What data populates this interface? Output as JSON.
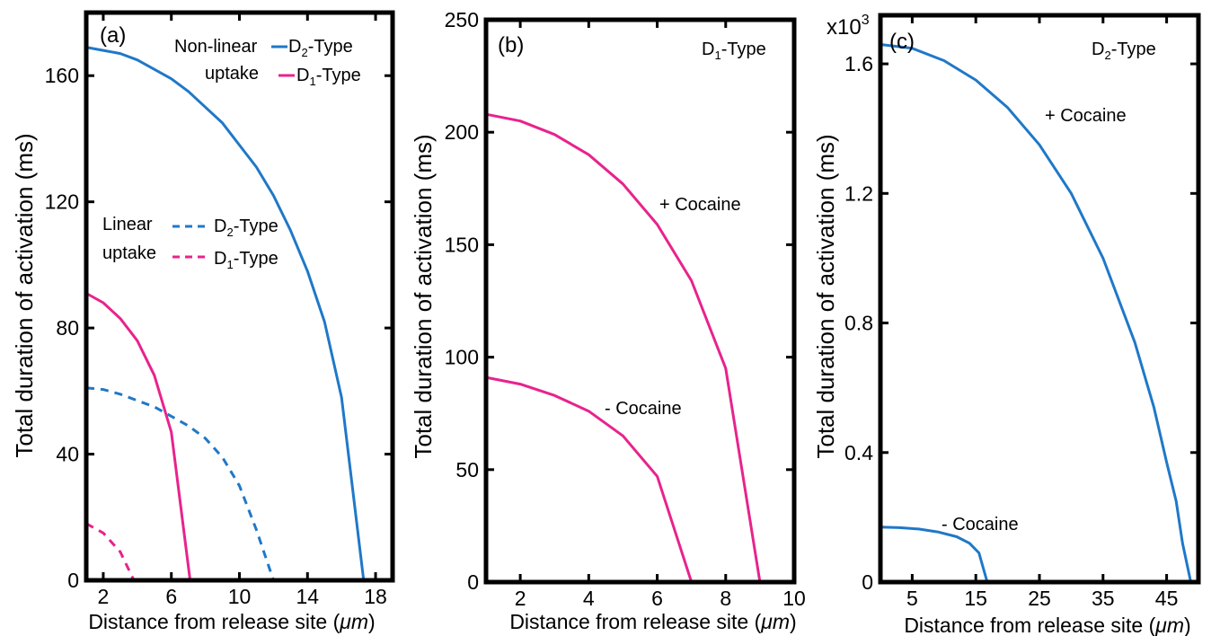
{
  "chart_data": [
    {
      "type": "line",
      "panel_label": "(a)",
      "xlabel": "Distance from release site (",
      "xlabel_unit": "μm",
      "ylabel": "Total duration of activation (ms)",
      "xlim": [
        1,
        19
      ],
      "ylim": [
        0,
        180
      ],
      "xticks": [
        2,
        6,
        10,
        14,
        18
      ],
      "yticks": [
        0,
        40,
        80,
        120,
        160
      ],
      "legend_groups": [
        {
          "label_lines": [
            "Non-linear",
            "uptake"
          ],
          "entries": [
            "D2-Type",
            "D1-Type"
          ]
        },
        {
          "label_lines": [
            "Linear",
            "uptake"
          ],
          "entries": [
            "D2-Type",
            "D1-Type"
          ]
        }
      ],
      "series": [
        {
          "name": "Non-linear uptake D2-Type",
          "style": "solid",
          "color": "#1f78c8",
          "x": [
            1,
            2,
            3,
            4,
            5,
            6,
            7,
            8,
            9,
            10,
            11,
            12,
            13,
            14,
            15,
            16,
            17.3
          ],
          "y": [
            169,
            168,
            167,
            165,
            162,
            159,
            155,
            150,
            145,
            138,
            131,
            122,
            111,
            98,
            82,
            58,
            0
          ]
        },
        {
          "name": "Non-linear uptake D1-Type",
          "style": "solid",
          "color": "#e8238c",
          "x": [
            1,
            2,
            3,
            4,
            5,
            6,
            7.1
          ],
          "y": [
            91,
            88,
            83,
            76,
            65,
            47,
            0
          ]
        },
        {
          "name": "Linear uptake D2-Type",
          "style": "dashed",
          "color": "#1f78c8",
          "x": [
            1,
            2,
            3,
            4,
            5,
            6,
            7,
            8,
            9,
            10,
            11,
            12
          ],
          "y": [
            61,
            60.5,
            59,
            57,
            55,
            52,
            49,
            45,
            39,
            30,
            16,
            0
          ]
        },
        {
          "name": "Linear uptake D1-Type",
          "style": "dashed",
          "color": "#e8238c",
          "x": [
            1,
            2,
            3,
            3.8
          ],
          "y": [
            18,
            15,
            9,
            0
          ]
        }
      ]
    },
    {
      "type": "line",
      "panel_label": "(b)",
      "title": "D1-Type",
      "xlabel": "Distance from release site (",
      "xlabel_unit": "μm",
      "ylabel": "Total duration of activation (ms)",
      "xlim": [
        1,
        10
      ],
      "ylim": [
        0,
        250
      ],
      "xticks": [
        2,
        4,
        6,
        8,
        10
      ],
      "yticks": [
        0,
        50,
        100,
        150,
        200,
        250
      ],
      "series": [
        {
          "name": "+ Cocaine",
          "style": "solid",
          "color": "#e8238c",
          "x": [
            1,
            2,
            3,
            4,
            5,
            6,
            7,
            8,
            9
          ],
          "y": [
            208,
            205,
            199,
            190,
            177,
            159,
            134,
            95,
            0
          ]
        },
        {
          "name": "- Cocaine",
          "style": "solid",
          "color": "#e8238c",
          "x": [
            1,
            2,
            3,
            4,
            5,
            6,
            7
          ],
          "y": [
            91,
            88,
            83,
            76,
            65,
            47,
            0
          ]
        }
      ]
    },
    {
      "type": "line",
      "panel_label": "(c)",
      "title": "D2-Type",
      "scale_note": "x10",
      "scale_exp": "3",
      "xlabel": "Distance from release site (",
      "xlabel_unit": "μm",
      "ylabel": "Total duration of activation (ms)",
      "xlim": [
        0,
        50
      ],
      "ylim": [
        0,
        1.75
      ],
      "xticks": [
        5,
        15,
        25,
        35,
        45
      ],
      "yticks": [
        0,
        0.4,
        0.8,
        1.2,
        1.6
      ],
      "series": [
        {
          "name": "+ Cocaine",
          "style": "solid",
          "color": "#1f78c8",
          "x": [
            0,
            5,
            10,
            15,
            20,
            25,
            30,
            35,
            40,
            43,
            45,
            46.5,
            47.5,
            48.8
          ],
          "y": [
            1.66,
            1.648,
            1.61,
            1.55,
            1.465,
            1.35,
            1.2,
            1.0,
            0.74,
            0.54,
            0.37,
            0.25,
            0.12,
            0
          ]
        },
        {
          "name": "- Cocaine",
          "style": "solid",
          "color": "#1f78c8",
          "x": [
            0,
            3,
            6,
            9,
            12,
            14,
            15.5,
            16.8
          ],
          "y": [
            0.17,
            0.168,
            0.164,
            0.155,
            0.14,
            0.12,
            0.09,
            0
          ]
        }
      ]
    }
  ],
  "annotations": {
    "a_nonlinear_1": "Non-linear",
    "a_nonlinear_2": "uptake",
    "a_linear_1": "Linear",
    "a_linear_2": "uptake",
    "a_legend_d2": "D",
    "a_legend_d1": "D",
    "a_legend_sub2": "2",
    "a_legend_sub1": "1",
    "a_legend_suffix": "-Type",
    "b_title_main": "D",
    "b_title_sub": "1",
    "b_title_suffix": "-Type",
    "b_plus": "+ Cocaine",
    "b_minus": "- Cocaine",
    "c_title_main": "D",
    "c_title_sub": "2",
    "c_title_suffix": "-Type",
    "c_plus": "+ Cocaine",
    "c_minus": "- Cocaine",
    "xlabel_close": ")"
  }
}
